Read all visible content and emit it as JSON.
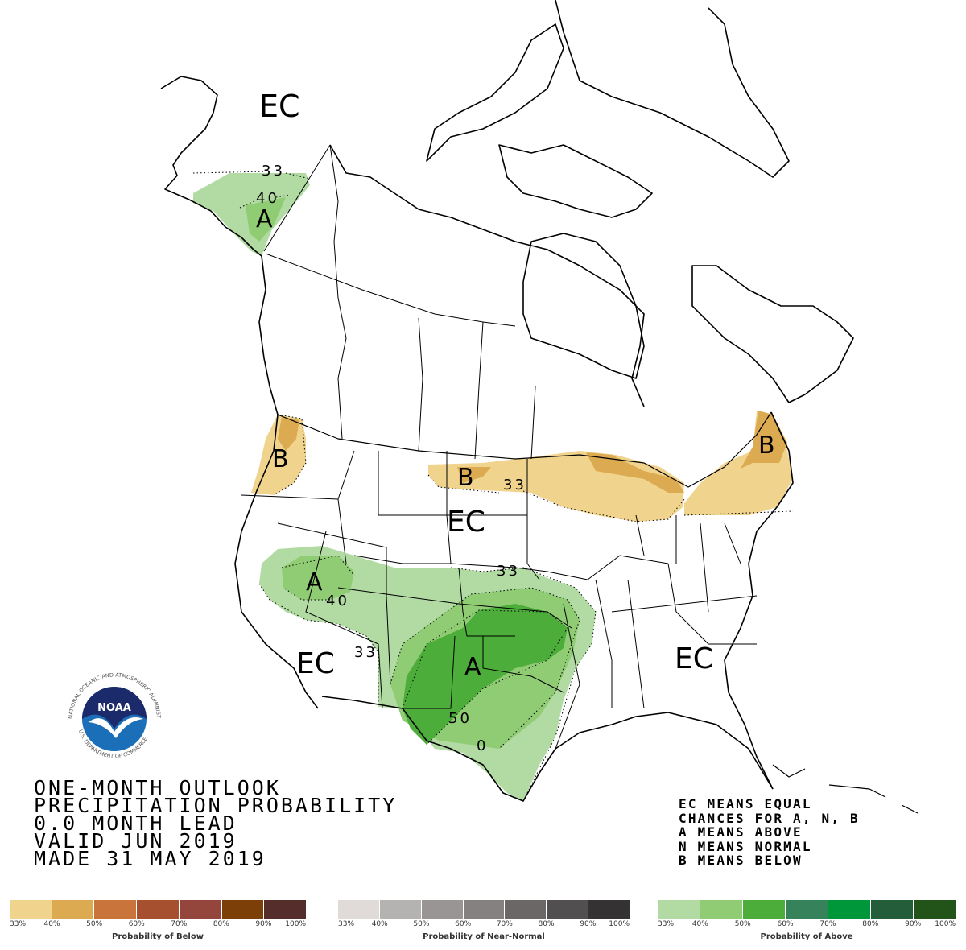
{
  "product": {
    "title_lines": [
      "ONE-MONTH OUTLOOK",
      "PRECIPITATION PROBABILITY",
      "0.0 MONTH LEAD",
      "VALID JUN 2019",
      "MADE 31 MAY 2019"
    ],
    "key_lines": [
      "EC MEANS EQUAL",
      "CHANCES FOR A, N, B",
      "A MEANS ABOVE",
      "N MEANS NORMAL",
      "B MEANS BELOW"
    ]
  },
  "logo": {
    "center_text": "NOAA",
    "ring_top": "NATIONAL OCEANIC AND ATMOSPHERIC ADMINISTRATION",
    "ring_bottom": "U.S. DEPARTMENT OF COMMERCE",
    "colors": {
      "navy": "#1b2a6b",
      "blue": "#1a6fb8",
      "white": "#ffffff"
    }
  },
  "map_labels": {
    "alaska_ec": "EC",
    "alaska_33": "33",
    "alaska_40": "40",
    "alaska_a": "A",
    "pnw_b": "B",
    "plains_b": "B",
    "plains_33": "33",
    "plains_ec": "EC",
    "ne_b": "B",
    "gb_a": "A",
    "gb_40": "40",
    "kansas_33": "33",
    "sw_33": "33",
    "sw_ec": "EC",
    "sp_a": "A",
    "tx_50": "50",
    "tx_40": "0",
    "se_ec": "EC"
  },
  "legends": {
    "below": {
      "caption": "Probability of Below",
      "colors": [
        "#f0d38c",
        "#dcaa50",
        "#c8743a",
        "#a6502f",
        "#94453c",
        "#7c3f08",
        "#552e2c"
      ],
      "ticks": [
        "33%",
        "40%",
        "50%",
        "60%",
        "70%",
        "80%",
        "90%",
        "100%"
      ]
    },
    "near_normal": {
      "caption": "Probability of Near-Normal",
      "colors": [
        "#e0dad8",
        "#b5b2b2",
        "#9a9595",
        "#858181",
        "#6b6767",
        "#514f4f",
        "#353233"
      ],
      "ticks": [
        "33%",
        "40%",
        "50%",
        "60%",
        "70%",
        "80%",
        "90%",
        "100%"
      ]
    },
    "above": {
      "caption": "Probability of Above",
      "colors": [
        "#b2dba4",
        "#8fcc74",
        "#4cad3a",
        "#36825a",
        "#00973a",
        "#245d39",
        "#22541a"
      ],
      "ticks": [
        "33%",
        "40%",
        "50%",
        "60%",
        "70%",
        "80%",
        "90%",
        "100%"
      ]
    }
  },
  "fill_colors": {
    "above_33": "#b2dba4",
    "above_40": "#8fcc74",
    "above_50": "#4cad3a",
    "below_33": "#f0d38c",
    "below_40": "#dcaa50"
  }
}
